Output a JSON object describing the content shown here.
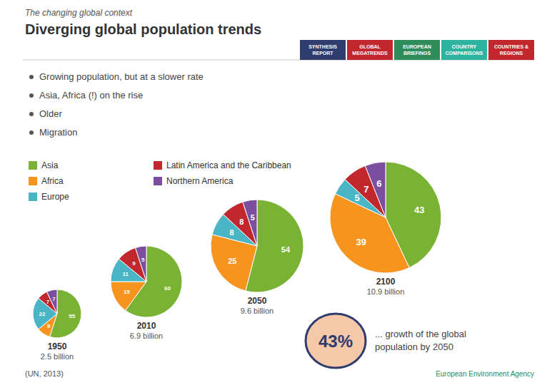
{
  "subtitle": "The changing global context",
  "title": "Diverging global population trends",
  "bullets": [
    "Growing population, but at a slower rate",
    "Asia, Africa (!) on the rise",
    "Older",
    "Migration"
  ],
  "tabs": [
    {
      "label": "SYNTHESIS\nREPORT",
      "color": "#2e3c6e"
    },
    {
      "label": "GLOBAL\nMEGATRENDS",
      "color": "#c1272d"
    },
    {
      "label": "EUROPEAN\nBRIEFINGS",
      "color": "#2d8c59"
    },
    {
      "label": "COUNTRY\nCOMPARISONS",
      "color": "#2db3a0"
    },
    {
      "label": "COUNTRIES &\nREGIONS",
      "color": "#c1272d"
    }
  ],
  "annotations": [
    "43%",
    "... growth of the global population by 2050",
    "European Environment Agency"
  ],
  "source": "(UN, 2013)",
  "chart_data": [
    {
      "type": "pie",
      "title": "1950",
      "subtitle": "2.5 billion",
      "categories": [
        "Asia",
        "Africa",
        "Europe",
        "Latin America and the Caribbean",
        "Northern America"
      ],
      "values": [
        55,
        9,
        22,
        7,
        7
      ],
      "colors": [
        "#7ab234",
        "#f7941d",
        "#4ab5c4",
        "#c1272d",
        "#7b4f9e"
      ],
      "data_labels": true,
      "legend": "left"
    },
    {
      "type": "pie",
      "title": "2010",
      "subtitle": "6.9 billion",
      "categories": [
        "Asia",
        "Africa",
        "Europe",
        "Latin America and the Caribbean",
        "Northern America"
      ],
      "values": [
        60,
        15,
        11,
        9,
        5
      ],
      "colors": [
        "#7ab234",
        "#f7941d",
        "#4ab5c4",
        "#c1272d",
        "#7b4f9e"
      ],
      "data_labels": true
    },
    {
      "type": "pie",
      "title": "2050",
      "subtitle": "9.6 billion",
      "categories": [
        "Asia",
        "Africa",
        "Europe",
        "Latin America and the Caribbean",
        "Northern America"
      ],
      "values": [
        54,
        25,
        8,
        8,
        5
      ],
      "colors": [
        "#7ab234",
        "#f7941d",
        "#4ab5c4",
        "#c1272d",
        "#7b4f9e"
      ],
      "data_labels": true
    },
    {
      "type": "pie",
      "title": "2100",
      "subtitle": "10.9 billion",
      "categories": [
        "Asia",
        "Africa",
        "Europe",
        "Latin America and the Caribbean",
        "Northern America"
      ],
      "values": [
        43,
        39,
        5,
        7,
        6
      ],
      "colors": [
        "#7ab234",
        "#f7941d",
        "#4ab5c4",
        "#c1272d",
        "#7b4f9e"
      ],
      "data_labels": true
    }
  ]
}
